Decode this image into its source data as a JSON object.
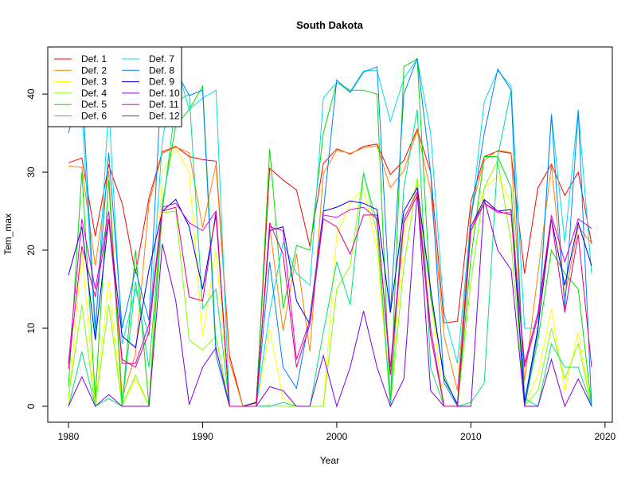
{
  "chart_data": {
    "type": "line",
    "title": "South Dakota",
    "xlabel": "Year",
    "ylabel": "Tem_max",
    "xlim": [
      1980,
      2019
    ],
    "ylim": [
      0,
      44.6
    ],
    "x_ticks": [
      1980,
      1990,
      2000,
      2010,
      2020
    ],
    "y_ticks": [
      0,
      10,
      20,
      30,
      40
    ],
    "legend_position": "top-left",
    "legend_columns": 2,
    "x": [
      1980,
      1981,
      1982,
      1983,
      1984,
      1985,
      1986,
      1987,
      1988,
      1989,
      1990,
      1991,
      1992,
      1993,
      1994,
      1995,
      1996,
      1997,
      1998,
      1999,
      2000,
      2001,
      2002,
      2003,
      2004,
      2005,
      2006,
      2007,
      2008,
      2009,
      2010,
      2011,
      2012,
      2013,
      2014,
      2015,
      2016,
      2017,
      2018,
      2019
    ],
    "series": [
      {
        "name": "Def. 1",
        "color": "#FF0000",
        "values": [
          31.2,
          31.8,
          21.8,
          30.9,
          26.0,
          17.0,
          26.7,
          32.6,
          33.3,
          32.0,
          31.6,
          31.4,
          6.5,
          0.0,
          0.5,
          30.5,
          29.0,
          27.7,
          20.5,
          31.1,
          33.0,
          32.3,
          33.3,
          33.6,
          29.7,
          31.5,
          35.5,
          30.0,
          10.7,
          10.9,
          26.2,
          32.0,
          32.7,
          32.4,
          17.0,
          28.0,
          31.0,
          27.0,
          30.0,
          20.8
        ]
      },
      {
        "name": "Def. 2",
        "color": "#FF8000",
        "values": [
          30.8,
          30.6,
          18.0,
          30.2,
          1.0,
          6.7,
          26.0,
          32.4,
          33.2,
          32.5,
          22.9,
          31.0,
          5.8,
          0.0,
          0.4,
          23.0,
          9.7,
          19.5,
          7.0,
          29.8,
          32.8,
          32.4,
          33.1,
          33.4,
          28.0,
          30.2,
          35.3,
          27.6,
          9.0,
          2.0,
          25.0,
          31.5,
          32.8,
          32.5,
          3.2,
          17.0,
          30.8,
          14.0,
          23.0,
          20.9
        ]
      },
      {
        "name": "Def. 3",
        "color": "#FFFF00",
        "values": [
          0.3,
          20.0,
          0.2,
          16.0,
          0.1,
          3.5,
          0.1,
          30.0,
          33.0,
          30.0,
          9.0,
          20.0,
          0.0,
          0.0,
          0.0,
          9.8,
          1.0,
          0.0,
          0.0,
          0.0,
          22.0,
          26.0,
          28.0,
          20.0,
          0.3,
          22.0,
          29.0,
          14.0,
          0.0,
          0.0,
          22.0,
          28.0,
          29.5,
          26.0,
          0.2,
          4.0,
          12.5,
          2.0,
          9.5,
          0.0
        ]
      },
      {
        "name": "Def. 4",
        "color": "#80FF00",
        "values": [
          1.2,
          13.0,
          0.0,
          13.0,
          0.1,
          4.0,
          0.0,
          24.8,
          25.0,
          8.5,
          7.2,
          9.0,
          0.0,
          0.0,
          0.0,
          0.1,
          0.0,
          0.0,
          0.0,
          0.0,
          15.0,
          18.0,
          30.0,
          22.0,
          0.1,
          18.0,
          29.2,
          10.0,
          0.0,
          0.0,
          16.0,
          28.0,
          31.5,
          21.0,
          0.1,
          2.0,
          10.0,
          3.5,
          8.0,
          0.0
        ]
      },
      {
        "name": "Def. 5",
        "color": "#00E000",
        "values": [
          2.5,
          30.0,
          1.0,
          29.0,
          0.0,
          20.0,
          0.0,
          26.0,
          36.0,
          38.0,
          41.0,
          7.5,
          0.0,
          0.0,
          0.0,
          33.0,
          12.5,
          20.6,
          20.0,
          35.0,
          41.5,
          40.5,
          40.5,
          40.0,
          0.3,
          43.5,
          44.5,
          14.0,
          4.0,
          0.0,
          19.0,
          32.0,
          32.0,
          28.0,
          0.0,
          8.5,
          20.0,
          17.0,
          15.0,
          0.0
        ]
      },
      {
        "name": "Def. 6",
        "color": "#00E080",
        "values": [
          0.0,
          7.0,
          0.0,
          1.0,
          0.0,
          16.0,
          5.0,
          25.0,
          39.0,
          40.0,
          12.5,
          15.0,
          0.0,
          0.0,
          0.0,
          0.0,
          0.5,
          0.0,
          0.0,
          9.5,
          18.5,
          13.0,
          29.8,
          23.5,
          0.0,
          28.0,
          38.0,
          5.0,
          0.0,
          0.0,
          0.5,
          3.0,
          32.0,
          40.5,
          1.0,
          0.0,
          8.0,
          5.0,
          5.0,
          0.0
        ]
      },
      {
        "name": "Def. 7",
        "color": "#00E0E0",
        "values": [
          37.0,
          38.0,
          9.0,
          38.5,
          8.0,
          15.0,
          9.0,
          34.0,
          44.0,
          38.0,
          39.5,
          40.5,
          0.0,
          0.0,
          0.0,
          12.0,
          21.0,
          17.0,
          15.5,
          39.5,
          41.5,
          40.3,
          43.0,
          43.0,
          36.5,
          42.0,
          44.5,
          35.0,
          12.0,
          5.5,
          24.0,
          39.0,
          43.0,
          41.0,
          10.0,
          10.0,
          37.5,
          21.0,
          38.0,
          17.0
        ]
      },
      {
        "name": "Def. 8",
        "color": "#0080FF",
        "values": [
          35.0,
          41.5,
          10.0,
          32.5,
          10.0,
          17.5,
          11.0,
          43.8,
          43.0,
          39.8,
          40.5,
          6.5,
          0.0,
          0.0,
          0.0,
          18.5,
          5.0,
          2.3,
          11.5,
          25.0,
          41.8,
          40.2,
          42.8,
          43.5,
          12.0,
          40.0,
          44.6,
          30.0,
          3.0,
          0.0,
          24.0,
          35.0,
          43.2,
          40.5,
          0.0,
          9.5,
          37.3,
          12.5,
          37.8,
          0.0
        ]
      },
      {
        "name": "Def. 9",
        "color": "#0000E0",
        "values": [
          16.8,
          23.0,
          8.5,
          24.0,
          9.0,
          7.5,
          17.5,
          25.0,
          26.5,
          23.0,
          15.0,
          24.5,
          0.0,
          0.0,
          0.5,
          22.5,
          23.0,
          13.5,
          10.5,
          25.0,
          25.5,
          26.3,
          26.0,
          25.2,
          12.0,
          25.0,
          28.0,
          15.0,
          3.5,
          0.3,
          23.0,
          26.5,
          25.0,
          25.2,
          0.5,
          10.0,
          24.0,
          15.5,
          23.5,
          18.0
        ]
      },
      {
        "name": "Def. 10",
        "color": "#8000E0",
        "values": [
          0.0,
          3.8,
          0.0,
          1.5,
          0.0,
          0.0,
          0.0,
          20.8,
          13.5,
          0.2,
          5.0,
          7.5,
          0.0,
          0.0,
          0.0,
          2.5,
          2.0,
          0.0,
          0.0,
          6.5,
          0.0,
          5.0,
          12.2,
          5.0,
          0.0,
          3.5,
          27.5,
          2.0,
          0.0,
          0.0,
          0.0,
          26.5,
          20.0,
          17.5,
          0.0,
          0.0,
          6.0,
          0.0,
          3.5,
          0.0
        ]
      },
      {
        "name": "Def. 11",
        "color": "#E000E0",
        "values": [
          5.5,
          24.0,
          15.0,
          25.0,
          5.5,
          5.5,
          10.5,
          25.5,
          26.0,
          23.5,
          22.5,
          25.0,
          0.0,
          0.0,
          0.0,
          23.0,
          22.5,
          6.0,
          11.0,
          24.5,
          24.2,
          25.2,
          25.5,
          24.0,
          5.0,
          24.0,
          27.5,
          10.0,
          0.0,
          0.0,
          23.0,
          26.0,
          24.8,
          24.8,
          5.5,
          12.0,
          24.5,
          18.5,
          24.0,
          22.8
        ]
      },
      {
        "name": "Def. 12",
        "color": "#E00080",
        "values": [
          4.8,
          20.5,
          14.0,
          24.0,
          6.0,
          5.0,
          9.5,
          25.0,
          25.5,
          14.0,
          13.5,
          25.0,
          0.0,
          0.0,
          0.0,
          23.5,
          19.5,
          5.0,
          10.5,
          24.0,
          23.0,
          19.5,
          24.5,
          24.5,
          4.0,
          23.5,
          27.0,
          9.0,
          0.0,
          0.0,
          22.5,
          26.0,
          25.0,
          24.5,
          5.0,
          11.5,
          24.0,
          12.0,
          22.0,
          5.0
        ]
      }
    ]
  }
}
